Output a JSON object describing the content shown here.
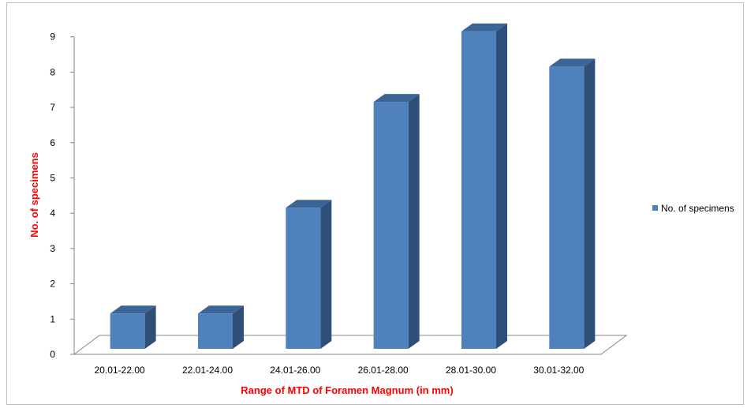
{
  "chart_data": {
    "type": "bar",
    "style": "3d-column",
    "categories": [
      "20.01-22.00",
      "22.01-24.00",
      "24.01-26.00",
      "26.01-28.00",
      "28.01-30.00",
      "30.01-32.00"
    ],
    "series": [
      {
        "name": "No. of specimens",
        "values": [
          1,
          1,
          4,
          7,
          9,
          8
        ]
      }
    ],
    "title": "",
    "xlabel": "Range of MTD of Foramen Magnum (in mm)",
    "ylabel": "No. of specimens",
    "ylim": [
      0,
      9
    ],
    "yticks": [
      0,
      1,
      2,
      3,
      4,
      5,
      6,
      7,
      8,
      9
    ],
    "grid": false,
    "legend": "right",
    "colors": {
      "bar_front": "#4f81bd",
      "bar_side": "#2e4f78",
      "bar_top": "#3a6596",
      "axis_title": "#ff0000",
      "axis_line": "#868686"
    }
  }
}
